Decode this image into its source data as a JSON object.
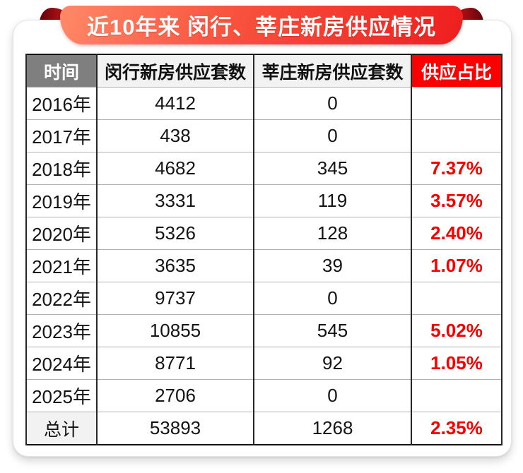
{
  "banner": {
    "title": "近10年来 闵行、莘庄新房供应情况"
  },
  "chart_data": {
    "type": "table",
    "title": "近10年来 闵行、莘庄新房供应情况",
    "columns": [
      "时间",
      "闵行新房供应套数",
      "莘庄新房供应套数",
      "供应占比"
    ],
    "rows": [
      [
        "2016年",
        "4412",
        "0",
        ""
      ],
      [
        "2017年",
        "438",
        "0",
        ""
      ],
      [
        "2018年",
        "4682",
        "345",
        "7.37%"
      ],
      [
        "2019年",
        "3331",
        "119",
        "3.57%"
      ],
      [
        "2020年",
        "5326",
        "128",
        "2.40%"
      ],
      [
        "2021年",
        "3635",
        "39",
        "1.07%"
      ],
      [
        "2022年",
        "9737",
        "0",
        ""
      ],
      [
        "2023年",
        "10855",
        "545",
        "5.02%"
      ],
      [
        "2024年",
        "8771",
        "92",
        "1.05%"
      ],
      [
        "2025年",
        "2706",
        "0",
        ""
      ]
    ],
    "total_row": [
      "总计",
      "53893",
      "1268",
      "2.35%"
    ]
  },
  "colors": {
    "banner_gradient_light": "#ff8968",
    "banner_gradient_dark": "#ee1e1e",
    "banner_fold_dark_red": "#5e030d",
    "header_time_bg": "#7f7f7f",
    "header_light_bg": "#f2f2f2",
    "header_ratio_bg": "#fa0000",
    "ratio_text_red": "#f60000",
    "grid_vertical": "#262626",
    "grid_horizontal": "#b2b2b2"
  }
}
